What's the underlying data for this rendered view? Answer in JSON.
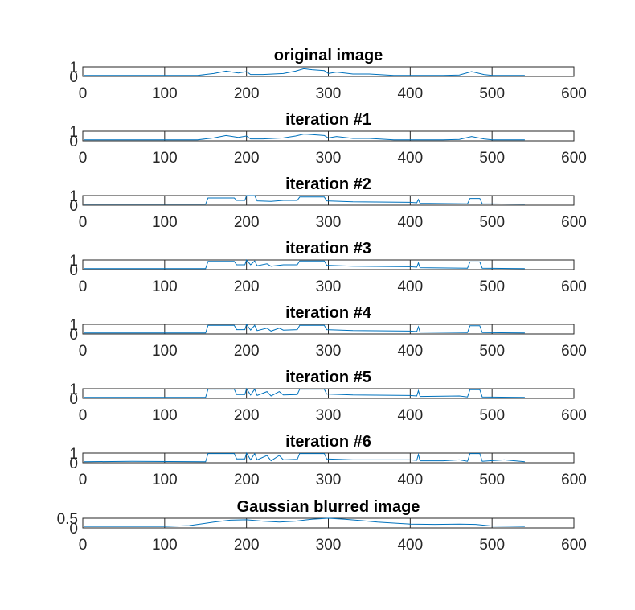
{
  "chart_data": [
    {
      "type": "line",
      "title": "original image",
      "xlim": [
        0,
        600
      ],
      "ylim": [
        0,
        1
      ],
      "xticks": [
        "0",
        "100",
        "200",
        "300",
        "400",
        "500",
        "600"
      ],
      "yticks": [
        "0",
        "1"
      ],
      "series": [
        {
          "color": "#0072BD",
          "x": [
            1,
            140,
            160,
            175,
            190,
            200,
            205,
            220,
            245,
            260,
            270,
            280,
            295,
            300,
            310,
            330,
            350,
            380,
            400,
            440,
            460,
            475,
            490,
            500,
            540
          ],
          "y": [
            0.1,
            0.1,
            0.3,
            0.55,
            0.35,
            0.5,
            0.2,
            0.2,
            0.3,
            0.55,
            0.8,
            0.7,
            0.6,
            0.3,
            0.45,
            0.25,
            0.25,
            0.1,
            0.1,
            0.1,
            0.15,
            0.5,
            0.2,
            0.1,
            0.1
          ]
        }
      ]
    },
    {
      "type": "line",
      "title": "iteration #1",
      "xlim": [
        0,
        600
      ],
      "ylim": [
        0,
        1
      ],
      "xticks": [
        "0",
        "100",
        "200",
        "300",
        "400",
        "500",
        "600"
      ],
      "yticks": [
        "0",
        "1"
      ],
      "series": [
        {
          "color": "#0072BD",
          "x": [
            1,
            140,
            160,
            175,
            190,
            200,
            205,
            220,
            245,
            260,
            270,
            280,
            295,
            300,
            310,
            330,
            350,
            380,
            400,
            440,
            460,
            475,
            490,
            500,
            540
          ],
          "y": [
            0.1,
            0.1,
            0.3,
            0.55,
            0.35,
            0.5,
            0.2,
            0.2,
            0.3,
            0.5,
            0.7,
            0.65,
            0.55,
            0.3,
            0.45,
            0.25,
            0.25,
            0.1,
            0.1,
            0.1,
            0.15,
            0.45,
            0.2,
            0.1,
            0.1
          ]
        }
      ]
    },
    {
      "type": "line",
      "title": "iteration #2",
      "xlim": [
        0,
        600
      ],
      "ylim": [
        0,
        1
      ],
      "xticks": [
        "0",
        "100",
        "200",
        "300",
        "400",
        "500",
        "600"
      ],
      "yticks": [
        "0",
        "1"
      ],
      "series": [
        {
          "color": "#0072BD",
          "x": [
            1,
            150,
            153,
            185,
            188,
            198,
            200,
            210,
            213,
            230,
            245,
            262,
            265,
            295,
            298,
            330,
            400,
            408,
            410,
            412,
            470,
            473,
            485,
            488,
            540
          ],
          "y": [
            0.1,
            0.1,
            0.75,
            0.75,
            0.5,
            0.5,
            1.0,
            1.0,
            0.45,
            0.4,
            0.5,
            0.5,
            0.85,
            0.85,
            0.45,
            0.35,
            0.3,
            0.25,
            0.6,
            0.2,
            0.15,
            0.7,
            0.7,
            0.15,
            0.1
          ]
        }
      ]
    },
    {
      "type": "line",
      "title": "iteration #3",
      "xlim": [
        0,
        600
      ],
      "ylim": [
        0,
        1
      ],
      "xticks": [
        "0",
        "100",
        "200",
        "300",
        "400",
        "500",
        "600"
      ],
      "yticks": [
        "0",
        "1"
      ],
      "series": [
        {
          "color": "#0072BD",
          "x": [
            1,
            150,
            153,
            185,
            188,
            198,
            200,
            205,
            210,
            213,
            225,
            230,
            245,
            262,
            265,
            295,
            298,
            330,
            400,
            408,
            410,
            412,
            470,
            473,
            485,
            488,
            540
          ],
          "y": [
            0.1,
            0.1,
            0.85,
            0.85,
            0.5,
            0.5,
            1.0,
            0.5,
            0.9,
            0.4,
            0.6,
            0.35,
            0.5,
            0.5,
            0.9,
            0.9,
            0.45,
            0.35,
            0.3,
            0.25,
            0.7,
            0.2,
            0.15,
            0.8,
            0.8,
            0.15,
            0.1
          ]
        }
      ]
    },
    {
      "type": "line",
      "title": "iteration #4",
      "xlim": [
        0,
        600
      ],
      "ylim": [
        0,
        1
      ],
      "xticks": [
        "0",
        "100",
        "200",
        "300",
        "400",
        "500",
        "600"
      ],
      "yticks": [
        "0",
        "1"
      ],
      "series": [
        {
          "color": "#0072BD",
          "x": [
            1,
            150,
            153,
            185,
            188,
            198,
            200,
            205,
            210,
            213,
            225,
            230,
            240,
            245,
            262,
            265,
            295,
            298,
            330,
            400,
            408,
            410,
            412,
            470,
            473,
            485,
            488,
            540
          ],
          "y": [
            0.1,
            0.1,
            0.9,
            0.9,
            0.45,
            0.45,
            1.0,
            0.4,
            0.9,
            0.35,
            0.6,
            0.3,
            0.6,
            0.4,
            0.45,
            0.9,
            0.9,
            0.45,
            0.35,
            0.3,
            0.25,
            0.75,
            0.2,
            0.15,
            0.85,
            0.85,
            0.15,
            0.1
          ]
        }
      ]
    },
    {
      "type": "line",
      "title": "iteration #5",
      "xlim": [
        0,
        600
      ],
      "ylim": [
        0,
        1
      ],
      "xticks": [
        "0",
        "100",
        "200",
        "300",
        "400",
        "500",
        "600"
      ],
      "yticks": [
        "0",
        "1"
      ],
      "series": [
        {
          "color": "#0072BD",
          "x": [
            1,
            150,
            153,
            185,
            188,
            198,
            200,
            205,
            210,
            213,
            225,
            230,
            240,
            245,
            262,
            265,
            295,
            298,
            330,
            400,
            408,
            410,
            412,
            460,
            470,
            473,
            485,
            488,
            540
          ],
          "y": [
            0.1,
            0.1,
            0.95,
            0.95,
            0.4,
            0.4,
            1.0,
            0.35,
            0.95,
            0.3,
            0.7,
            0.25,
            0.7,
            0.35,
            0.4,
            0.95,
            0.95,
            0.45,
            0.35,
            0.3,
            0.25,
            0.8,
            0.2,
            0.25,
            0.15,
            0.9,
            0.9,
            0.15,
            0.1
          ]
        }
      ]
    },
    {
      "type": "line",
      "title": "iteration #6",
      "xlim": [
        0,
        600
      ],
      "ylim": [
        0,
        1
      ],
      "xticks": [
        "0",
        "100",
        "200",
        "300",
        "400",
        "500",
        "600"
      ],
      "yticks": [
        "0",
        "1"
      ],
      "series": [
        {
          "color": "#0072BD",
          "x": [
            1,
            60,
            150,
            153,
            185,
            188,
            198,
            200,
            205,
            210,
            213,
            225,
            230,
            240,
            245,
            262,
            265,
            295,
            298,
            330,
            400,
            408,
            410,
            412,
            440,
            460,
            470,
            473,
            485,
            488,
            515,
            540
          ],
          "y": [
            0.1,
            0.15,
            0.1,
            0.95,
            0.95,
            0.4,
            0.4,
            1.0,
            0.3,
            0.95,
            0.3,
            0.75,
            0.2,
            0.75,
            0.3,
            0.35,
            0.95,
            0.95,
            0.4,
            0.3,
            0.3,
            0.25,
            0.85,
            0.2,
            0.2,
            0.3,
            0.15,
            0.95,
            0.95,
            0.15,
            0.3,
            0.1
          ]
        }
      ]
    },
    {
      "type": "line",
      "title": "Gaussian blurred image",
      "xlim": [
        0,
        600
      ],
      "ylim": [
        0,
        0.5
      ],
      "xticks": [
        "0",
        "100",
        "200",
        "300",
        "400",
        "500",
        "600"
      ],
      "yticks": [
        "0",
        "0.5"
      ],
      "series": [
        {
          "color": "#0072BD",
          "x": [
            1,
            100,
            130,
            160,
            180,
            200,
            220,
            240,
            260,
            280,
            300,
            320,
            340,
            360,
            380,
            400,
            430,
            460,
            480,
            500,
            540
          ],
          "y": [
            0.08,
            0.08,
            0.12,
            0.3,
            0.4,
            0.42,
            0.35,
            0.3,
            0.35,
            0.45,
            0.5,
            0.45,
            0.38,
            0.3,
            0.25,
            0.2,
            0.18,
            0.2,
            0.18,
            0.1,
            0.08
          ]
        }
      ]
    }
  ]
}
